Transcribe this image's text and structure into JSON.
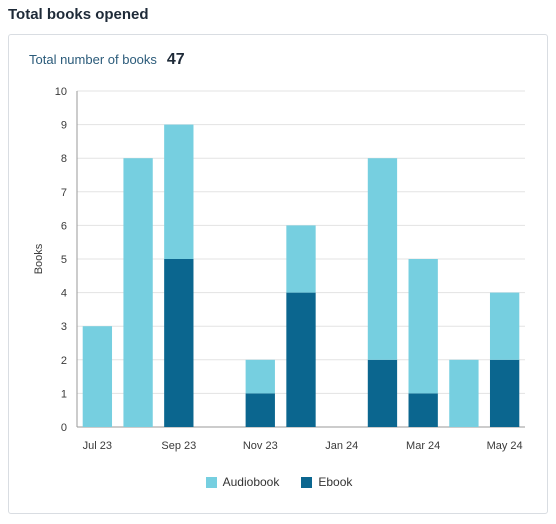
{
  "header": {
    "title": "Total books opened"
  },
  "summary": {
    "label": "Total number of books",
    "value": "47"
  },
  "colors": {
    "audiobook": "#76cfe0",
    "ebook": "#0b668f",
    "grid": "#e3e3e3",
    "axis": "#9a9a9a"
  },
  "chart_data": {
    "type": "bar",
    "stacked": true,
    "title": "",
    "xlabel": "",
    "ylabel": "Books",
    "ylim": [
      0,
      10
    ],
    "yticks": [
      0,
      1,
      2,
      3,
      4,
      5,
      6,
      7,
      8,
      9,
      10
    ],
    "categories": [
      "Jul 23",
      "Aug 23",
      "Sep 23",
      "Oct 23",
      "Nov 23",
      "Dec 23",
      "Jan 24",
      "Feb 24",
      "Mar 24",
      "Apr 24",
      "May 24"
    ],
    "tick_labels": [
      "Jul 23",
      "",
      "Sep 23",
      "",
      "Nov 23",
      "",
      "Jan 24",
      "",
      "Mar 24",
      "",
      "May 24"
    ],
    "series": [
      {
        "name": "Ebook",
        "values": [
          0,
          0,
          5,
          0,
          1,
          4,
          0,
          2,
          1,
          0,
          2
        ]
      },
      {
        "name": "Audiobook",
        "values": [
          3,
          8,
          4,
          0,
          1,
          2,
          0,
          6,
          4,
          2,
          2
        ]
      }
    ],
    "grid": true,
    "legend_position": "bottom"
  }
}
